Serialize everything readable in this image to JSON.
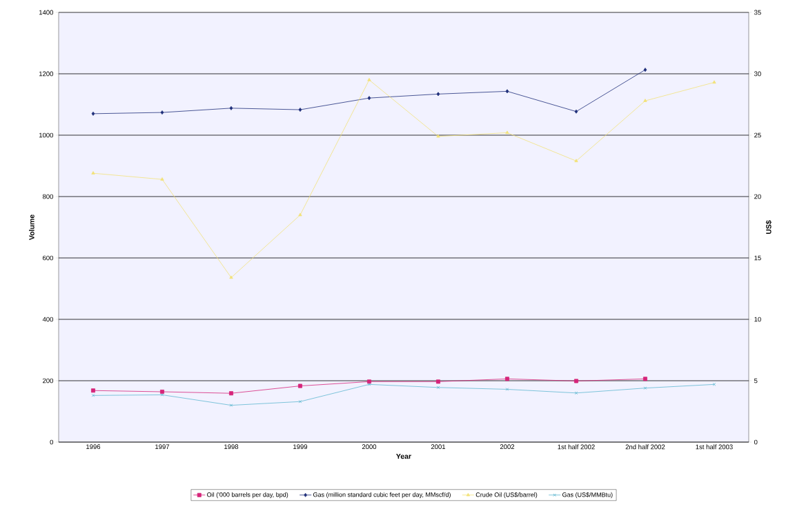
{
  "chart_data": {
    "type": "line",
    "xlabel": "Year",
    "ylabel": "Volume",
    "y2label": "US$",
    "categories": [
      "1996",
      "1997",
      "1998",
      "1999",
      "2000",
      "2001",
      "2002",
      "1st half 2002",
      "2nd half 2002",
      "1st half 2003"
    ],
    "ylim": [
      0,
      1400
    ],
    "yticks": [
      0,
      200,
      400,
      600,
      800,
      1000,
      1200,
      1400
    ],
    "y2lim": [
      0,
      35
    ],
    "y2ticks": [
      0,
      5,
      10,
      15,
      20,
      25,
      30,
      35
    ],
    "grid": "y",
    "legend": "bottom",
    "series": [
      {
        "name": "Oil ('000 barrels per day, bpd)",
        "color": "#d6257a",
        "marker": "square",
        "values": [
          168,
          164,
          159,
          183,
          197,
          197,
          206,
          199,
          206,
          null
        ]
      },
      {
        "name": "Gas (million standard cubic feet per day, MMscf/d)",
        "color": "#1f2f7a",
        "marker": "diamond",
        "values": [
          1070,
          1074,
          1088,
          1083,
          1121,
          1134,
          1143,
          1077,
          1213,
          null
        ]
      },
      {
        "name": "Crude Oil (US$/barrel)",
        "color": "#f2e27a",
        "marker": "triangle",
        "axis": "y2",
        "values": [
          21.9,
          21.4,
          13.4,
          18.5,
          29.5,
          24.9,
          25.2,
          22.9,
          27.8,
          29.3
        ]
      },
      {
        "name": "Gas (US$/MMBtu)",
        "color": "#5fb8d0",
        "marker": "cross",
        "axis": "y2",
        "values": [
          3.8,
          3.85,
          3.0,
          3.3,
          4.7,
          4.45,
          4.3,
          4.0,
          4.4,
          4.7
        ]
      }
    ]
  }
}
